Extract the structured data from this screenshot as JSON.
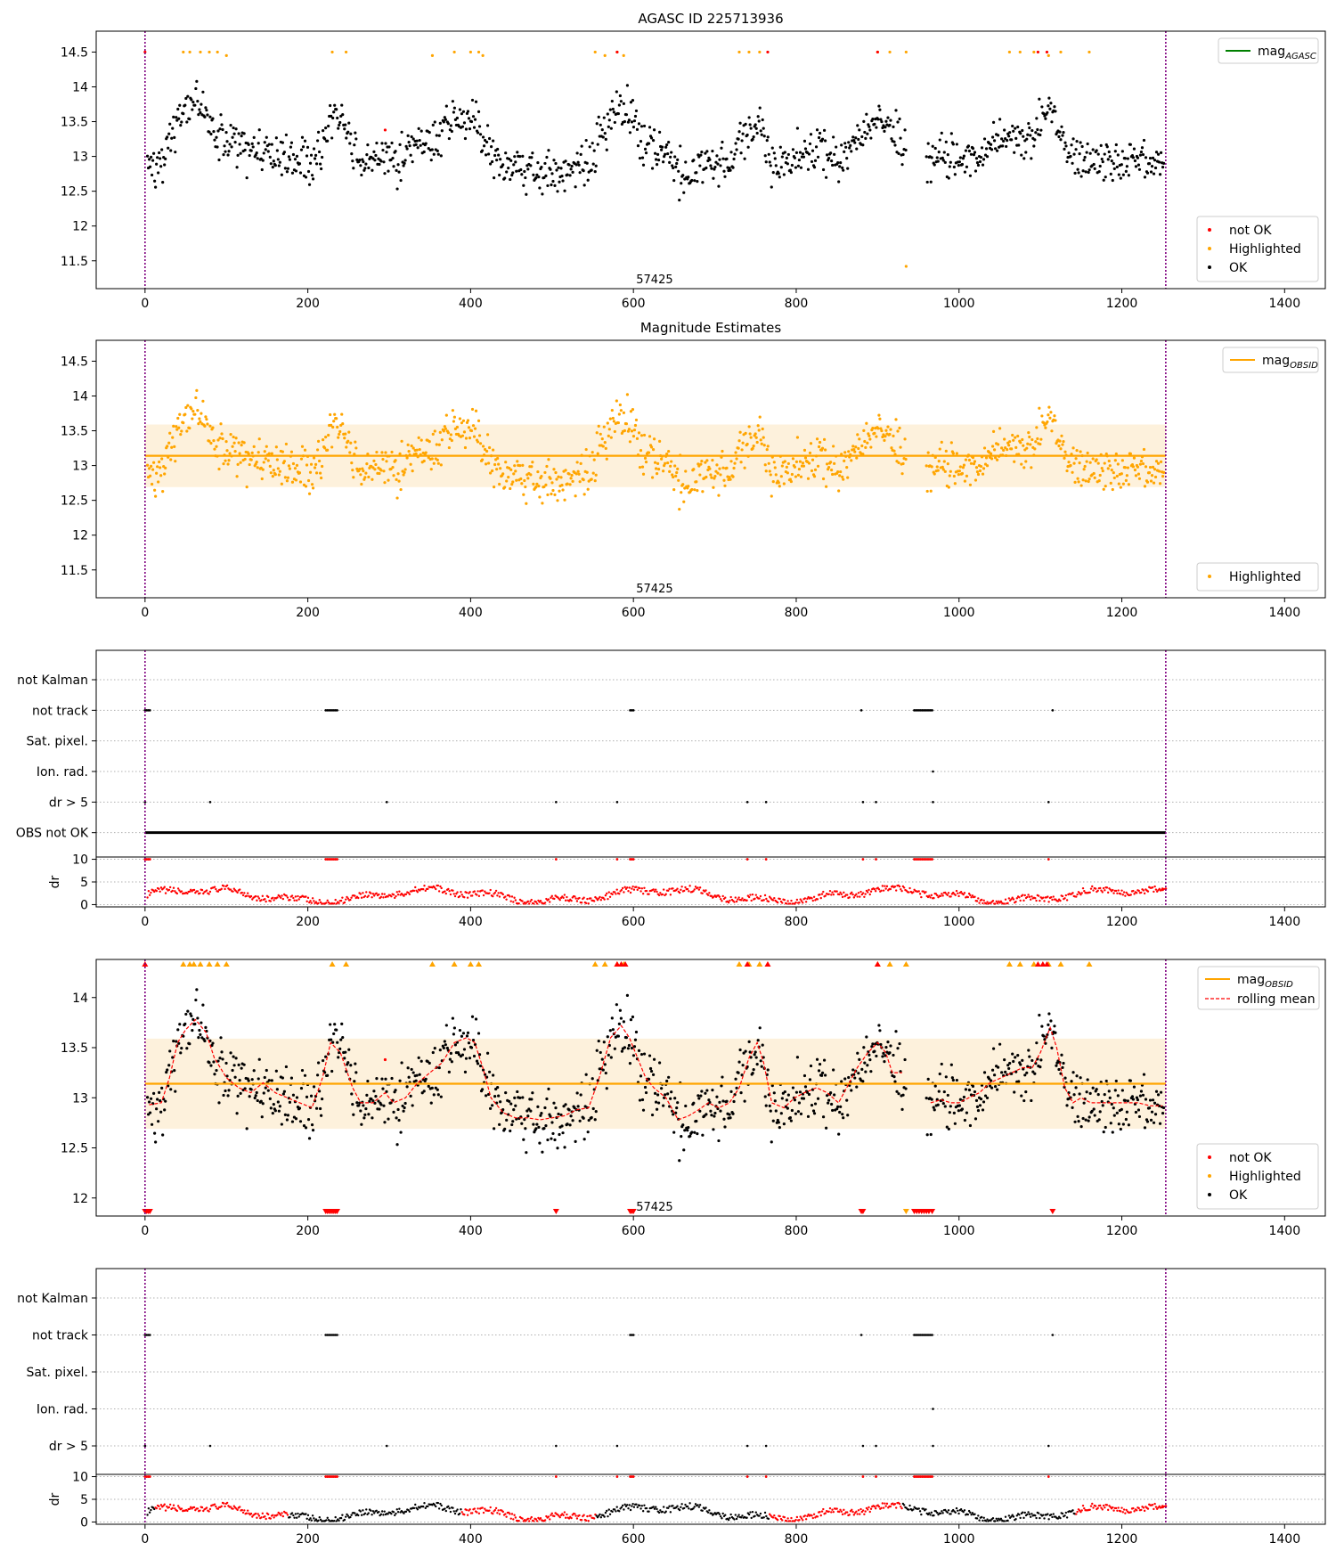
{
  "figure": {
    "title": "AGASC ID 225713936",
    "colors": {
      "ok": "#000000",
      "not_ok": "#ff0000",
      "highlighted": "#ffa500",
      "agasc_line": "#008000",
      "band": "#fdf1dc",
      "vline": "#800080",
      "grid": "#b0b0b0"
    }
  },
  "chart_data": [
    {
      "id": "p1",
      "type": "scatter",
      "title": "AGASC ID 225713936",
      "xlim": [
        -60,
        1450
      ],
      "ylim": [
        11.1,
        14.8
      ],
      "xticks": [
        0,
        200,
        400,
        600,
        800,
        1000,
        1200,
        1400
      ],
      "yticks": [
        11.5,
        12.0,
        12.5,
        13.0,
        13.5,
        14.0,
        14.5
      ],
      "vlines": [
        0,
        1254
      ],
      "obsid_label": {
        "text": "57425",
        "x": 626
      },
      "legend_line": {
        "label": "mag",
        "sub": "AGASC",
        "color": "#008000"
      },
      "legend_points": [
        {
          "label": "not OK",
          "color": "#ff0000"
        },
        {
          "label": "Highlighted",
          "color": "#ffa500"
        },
        {
          "label": "OK",
          "color": "#000000"
        }
      ],
      "series": [
        {
          "name": "OK",
          "color": "#000000",
          "points": "ok"
        },
        {
          "name": "Highlighted",
          "color": "#ffa500",
          "points": [
            [
              47,
              14.5
            ],
            [
              55,
              14.5
            ],
            [
              68,
              14.5
            ],
            [
              79,
              14.5
            ],
            [
              89,
              14.5
            ],
            [
              100,
              14.45
            ],
            [
              230,
              14.5
            ],
            [
              247,
              14.5
            ],
            [
              353,
              14.45
            ],
            [
              380,
              14.5
            ],
            [
              400,
              14.5
            ],
            [
              410,
              14.5
            ],
            [
              415,
              14.45
            ],
            [
              553,
              14.5
            ],
            [
              565,
              14.45
            ],
            [
              580,
              14.5
            ],
            [
              588,
              14.45
            ],
            [
              730,
              14.5
            ],
            [
              742,
              14.5
            ],
            [
              755,
              14.5
            ],
            [
              900,
              14.5
            ],
            [
              915,
              14.5
            ],
            [
              935,
              14.5
            ],
            [
              1062,
              14.5
            ],
            [
              1075,
              14.5
            ],
            [
              1092,
              14.5
            ],
            [
              1110,
              14.45
            ],
            [
              1125,
              14.5
            ],
            [
              1160,
              14.5
            ],
            [
              935,
              11.42
            ]
          ]
        },
        {
          "name": "not OK",
          "color": "#ff0000",
          "points": [
            [
              0,
              14.5
            ],
            [
              580,
              14.5
            ],
            [
              900,
              14.5
            ],
            [
              1097,
              14.5
            ],
            [
              1108,
              14.5
            ],
            [
              295,
              13.38
            ],
            [
              765,
              14.5
            ]
          ]
        }
      ]
    },
    {
      "id": "p2",
      "type": "scatter",
      "title": "Magnitude Estimates",
      "xlim": [
        -60,
        1450
      ],
      "ylim": [
        11.1,
        14.8
      ],
      "xticks": [
        0,
        200,
        400,
        600,
        800,
        1000,
        1200,
        1400
      ],
      "yticks": [
        11.5,
        12.0,
        12.5,
        13.0,
        13.5,
        14.0,
        14.5
      ],
      "vlines": [
        0,
        1254
      ],
      "obsid_label": {
        "text": "57425",
        "x": 626
      },
      "mean": 13.14,
      "band": [
        12.69,
        13.59
      ],
      "legend_line": {
        "label": "mag",
        "sub": "OBSID",
        "color": "#ffa500"
      },
      "legend_points": [
        {
          "label": "Highlighted",
          "color": "#ffa500"
        }
      ],
      "series": [
        {
          "name": "Highlighted",
          "color": "#ffa500",
          "points": "all"
        }
      ]
    },
    {
      "id": "p3",
      "type": "flags",
      "categories": [
        "not Kalman",
        "not track",
        "Sat. pixel.",
        "Ion. rad.",
        "dr > 5",
        "OBS not OK"
      ],
      "xlim": [
        -60,
        1450
      ],
      "vlines": [
        0,
        1254
      ],
      "flag_points": {
        "not track": [
          [
            0,
            6
          ],
          [
            222,
            236
          ],
          [
            596,
            600
          ],
          [
            880,
            880
          ],
          [
            945,
            967
          ],
          [
            1115,
            1115
          ]
        ],
        "Ion. rad.": [
          [
            968,
            968
          ]
        ],
        "dr > 5": [
          [
            0,
            0
          ],
          [
            80,
            80
          ],
          [
            297,
            297
          ],
          [
            505,
            505
          ],
          [
            580,
            580
          ],
          [
            740,
            740
          ],
          [
            763,
            763
          ],
          [
            882,
            882
          ],
          [
            898,
            898
          ],
          [
            968,
            968
          ],
          [
            1110,
            1110
          ]
        ],
        "OBS not OK": [
          [
            0,
            1254
          ]
        ]
      },
      "dr": {
        "ylabel": "dr",
        "yticks": [
          0,
          5,
          10
        ],
        "ylim": [
          -0.5,
          10.5
        ],
        "color": "#ff0000",
        "mode": "all_red"
      }
    },
    {
      "id": "p4",
      "type": "scatter",
      "xlim": [
        -60,
        1450
      ],
      "ylim": [
        11.82,
        14.38
      ],
      "xticks": [
        0,
        200,
        400,
        600,
        800,
        1000,
        1200,
        1400
      ],
      "yticks": [
        12.0,
        12.5,
        13.0,
        13.5,
        14.0
      ],
      "vlines": [
        0,
        1254
      ],
      "obsid_label": {
        "text": "57425",
        "x": 626
      },
      "mean": 13.14,
      "band": [
        12.69,
        13.59
      ],
      "legend_line": {
        "label": "mag",
        "sub": "OBSID",
        "color": "#ffa500"
      },
      "legend_dashed": {
        "label": "rolling mean",
        "color": "#ff0000"
      },
      "legend_points": [
        {
          "label": "not OK",
          "color": "#ff0000"
        },
        {
          "label": "Highlighted",
          "color": "#ffa500"
        },
        {
          "label": "OK",
          "color": "#000000"
        }
      ],
      "top_markers": {
        "highlighted": [
          47,
          55,
          60,
          68,
          79,
          89,
          100,
          230,
          247,
          353,
          380,
          400,
          410,
          553,
          565,
          580,
          588,
          730,
          742,
          755,
          900,
          915,
          935,
          1062,
          1075,
          1092,
          1110,
          1125,
          1160
        ],
        "not_ok": [
          0,
          580,
          585,
          590,
          740,
          765,
          900,
          1097,
          1103,
          1108
        ]
      },
      "bottom_markers": {
        "not_ok": [
          0,
          2,
          4,
          6,
          222,
          224,
          226,
          228,
          230,
          232,
          234,
          236,
          505,
          596,
          598,
          600,
          880,
          882,
          945,
          948,
          951,
          954,
          957,
          960,
          963,
          967,
          1115
        ],
        "highlighted": [
          935
        ]
      },
      "rolling_mean": [
        [
          5,
          12.93
        ],
        [
          20,
          12.95
        ],
        [
          30,
          13.2
        ],
        [
          40,
          13.55
        ],
        [
          50,
          13.68
        ],
        [
          62,
          13.78
        ],
        [
          75,
          13.65
        ],
        [
          85,
          13.4
        ],
        [
          100,
          13.2
        ],
        [
          115,
          13.1
        ],
        [
          130,
          13.05
        ],
        [
          145,
          13.15
        ],
        [
          160,
          13.05
        ],
        [
          175,
          13.0
        ],
        [
          190,
          12.95
        ],
        [
          205,
          12.9
        ],
        [
          218,
          13.2
        ],
        [
          228,
          13.55
        ],
        [
          240,
          13.45
        ],
        [
          255,
          13.1
        ],
        [
          265,
          12.95
        ],
        [
          280,
          12.95
        ],
        [
          295,
          13.05
        ],
        [
          305,
          12.95
        ],
        [
          320,
          13.0
        ],
        [
          335,
          13.15
        ],
        [
          350,
          13.25
        ],
        [
          365,
          13.35
        ],
        [
          380,
          13.55
        ],
        [
          395,
          13.6
        ],
        [
          405,
          13.55
        ],
        [
          415,
          13.3
        ],
        [
          425,
          13.0
        ],
        [
          440,
          12.85
        ],
        [
          455,
          12.8
        ],
        [
          470,
          12.8
        ],
        [
          485,
          12.78
        ],
        [
          500,
          12.8
        ],
        [
          515,
          12.82
        ],
        [
          530,
          12.88
        ],
        [
          545,
          12.9
        ],
        [
          558,
          13.2
        ],
        [
          572,
          13.6
        ],
        [
          585,
          13.72
        ],
        [
          595,
          13.6
        ],
        [
          605,
          13.4
        ],
        [
          615,
          13.2
        ],
        [
          625,
          13.1
        ],
        [
          640,
          13.0
        ],
        [
          655,
          12.78
        ],
        [
          668,
          12.82
        ],
        [
          680,
          12.88
        ],
        [
          692,
          12.95
        ],
        [
          705,
          12.9
        ],
        [
          718,
          12.95
        ],
        [
          730,
          13.1
        ],
        [
          742,
          13.4
        ],
        [
          752,
          13.55
        ],
        [
          760,
          13.35
        ],
        [
          770,
          12.95
        ],
        [
          785,
          12.9
        ],
        [
          798,
          13.0
        ],
        [
          810,
          13.05
        ],
        [
          825,
          13.1
        ],
        [
          838,
          13.05
        ],
        [
          852,
          12.95
        ],
        [
          862,
          13.1
        ],
        [
          875,
          13.3
        ],
        [
          888,
          13.45
        ],
        [
          900,
          13.55
        ],
        [
          910,
          13.45
        ],
        [
          918,
          13.25
        ],
        [
          930,
          13.25
        ]
      ],
      "rolling_mean_2": [
        [
          965,
          12.95
        ],
        [
          978,
          12.98
        ],
        [
          990,
          12.95
        ],
        [
          1000,
          12.95
        ],
        [
          1012,
          13.0
        ],
        [
          1025,
          13.05
        ],
        [
          1038,
          13.15
        ],
        [
          1052,
          13.2
        ],
        [
          1065,
          13.25
        ],
        [
          1078,
          13.3
        ],
        [
          1090,
          13.3
        ],
        [
          1100,
          13.45
        ],
        [
          1112,
          13.7
        ],
        [
          1120,
          13.5
        ],
        [
          1130,
          13.1
        ],
        [
          1140,
          12.95
        ],
        [
          1150,
          13.0
        ],
        [
          1162,
          12.95
        ],
        [
          1175,
          12.95
        ],
        [
          1190,
          12.95
        ],
        [
          1205,
          12.95
        ],
        [
          1220,
          12.95
        ],
        [
          1235,
          12.92
        ],
        [
          1250,
          12.92
        ]
      ],
      "series": [
        {
          "name": "OK",
          "color": "#000000",
          "points": "ok"
        },
        {
          "name": "not OK",
          "color": "#ff0000",
          "points": [
            [
              295,
              13.38
            ]
          ]
        }
      ]
    },
    {
      "id": "p5",
      "type": "flags",
      "categories": [
        "not Kalman",
        "not track",
        "Sat. pixel.",
        "Ion. rad.",
        "dr > 5"
      ],
      "xlim": [
        -60,
        1450
      ],
      "vlines": [
        0,
        1254
      ],
      "flag_points": {
        "not track": [
          [
            0,
            6
          ],
          [
            222,
            236
          ],
          [
            596,
            600
          ],
          [
            880,
            880
          ],
          [
            945,
            967
          ],
          [
            1115,
            1115
          ]
        ],
        "Ion. rad.": [
          [
            968,
            968
          ]
        ],
        "dr > 5": [
          [
            0,
            0
          ],
          [
            80,
            80
          ],
          [
            297,
            297
          ],
          [
            505,
            505
          ],
          [
            580,
            580
          ],
          [
            740,
            740
          ],
          [
            763,
            763
          ],
          [
            882,
            882
          ],
          [
            898,
            898
          ],
          [
            968,
            968
          ],
          [
            1110,
            1110
          ]
        ]
      },
      "dr": {
        "ylabel": "dr",
        "yticks": [
          0,
          5,
          10
        ],
        "ylim": [
          -0.5,
          10.5
        ],
        "color": "#ff0000",
        "mode": "mixed"
      }
    }
  ]
}
